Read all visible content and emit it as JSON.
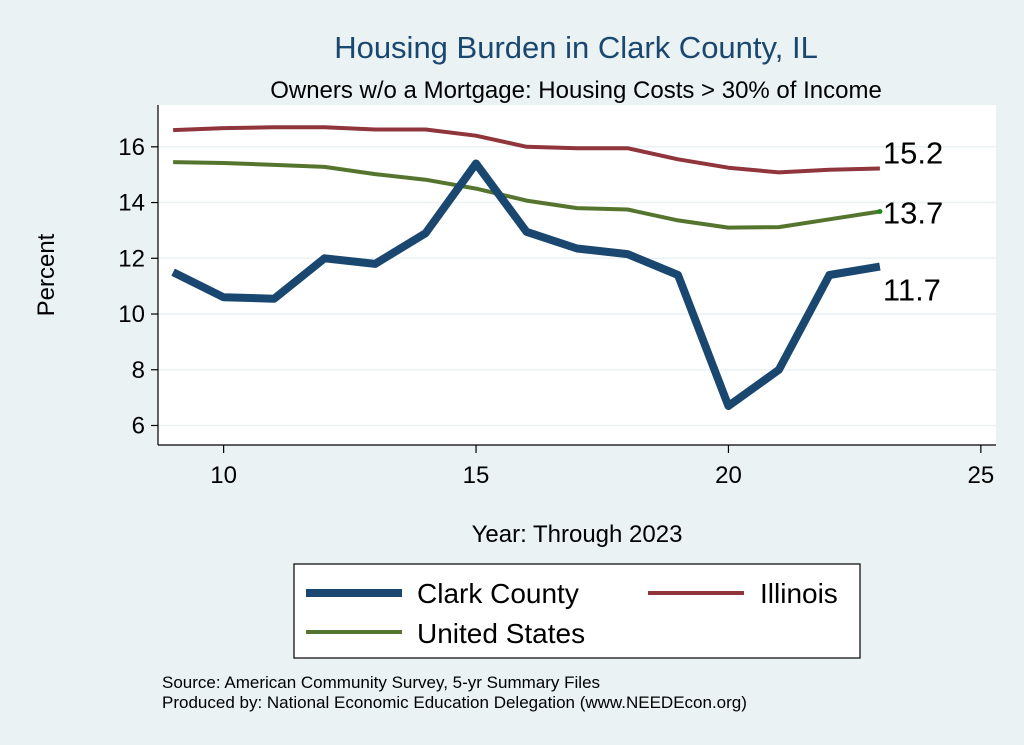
{
  "chart_data": {
    "type": "line",
    "title": "Housing Burden in Clark County, IL",
    "subtitle": "Owners w/o a Mortgage: Housing Costs > 30% of Income",
    "xlabel": "Year: Through 2023",
    "ylabel": "Percent",
    "xlim": [
      8.7,
      25.3
    ],
    "ylim": [
      5.3,
      17.5
    ],
    "xticks": [
      10,
      15,
      20,
      25
    ],
    "yticks": [
      6,
      8,
      10,
      12,
      14,
      16
    ],
    "grid": true,
    "x": [
      9,
      10,
      11,
      12,
      13,
      14,
      15,
      16,
      17,
      18,
      19,
      20,
      21,
      22,
      23
    ],
    "series": [
      {
        "name": "Clark County",
        "color": "#1a476f",
        "values": [
          11.5,
          10.6,
          10.55,
          12.0,
          11.8,
          12.9,
          15.4,
          12.95,
          12.35,
          12.15,
          11.4,
          6.7,
          8.0,
          11.4,
          11.7
        ],
        "end_label": "11.7"
      },
      {
        "name": "Illinois",
        "color": "#90353b",
        "values": [
          16.6,
          16.67,
          16.7,
          16.7,
          16.62,
          16.62,
          16.4,
          16.0,
          15.95,
          15.95,
          15.55,
          15.25,
          15.08,
          15.18,
          15.22
        ],
        "end_label": "15.2"
      },
      {
        "name": "United States",
        "color": "#55752f",
        "values": [
          15.45,
          15.42,
          15.35,
          15.28,
          15.02,
          14.82,
          14.5,
          14.07,
          13.8,
          13.75,
          13.36,
          13.1,
          13.12,
          13.4,
          13.68
        ],
        "end_label": "13.7"
      }
    ],
    "legend": [
      {
        "label": "Clark County",
        "color": "#1a476f"
      },
      {
        "label": "Illinois",
        "color": "#90353b"
      },
      {
        "label": "United States",
        "color": "#55752f"
      }
    ],
    "legend_position": "bottom",
    "notes": [
      "Source: American Community Survey, 5-yr Summary Files",
      "Produced by: National Economic Education Delegation (www.NEEDEcon.org)"
    ]
  }
}
